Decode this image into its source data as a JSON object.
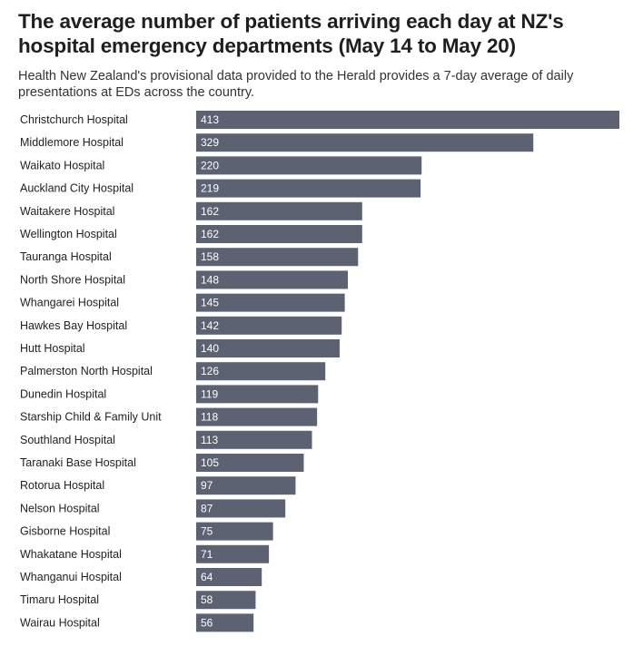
{
  "header": {
    "title": "The average number of patients arriving each day at NZ's hospital emergency departments (May 14 to May 20)",
    "subtitle": "Health New Zealand's provisional data provided to the Herald provides a 7-day average of daily presentations at EDs across the country."
  },
  "chart_data": {
    "type": "bar",
    "orientation": "horizontal",
    "bar_color": "#5d6272",
    "value_label_color": "#ffffff",
    "categories": [
      "Christchurch Hospital",
      "Middlemore Hospital",
      "Waikato Hospital",
      "Auckland City Hospital",
      "Waitakere Hospital",
      "Wellington Hospital",
      "Tauranga Hospital",
      "North Shore Hospital",
      "Whangarei Hospital",
      "Hawkes Bay Hospital",
      "Hutt Hospital",
      "Palmerston North Hospital",
      "Dunedin Hospital",
      "Starship Child & Family Unit",
      "Southland Hospital",
      "Taranaki Base Hospital",
      "Rotorua Hospital",
      "Nelson Hospital",
      "Gisborne Hospital",
      "Whakatane Hospital",
      "Whanganui Hospital",
      "Timaru Hospital",
      "Wairau Hospital"
    ],
    "values": [
      413,
      329,
      220,
      219,
      162,
      162,
      158,
      148,
      145,
      142,
      140,
      126,
      119,
      118,
      113,
      105,
      97,
      87,
      75,
      71,
      64,
      58,
      56
    ],
    "xlim": [
      0,
      413
    ],
    "grid": false,
    "legend": "none"
  }
}
